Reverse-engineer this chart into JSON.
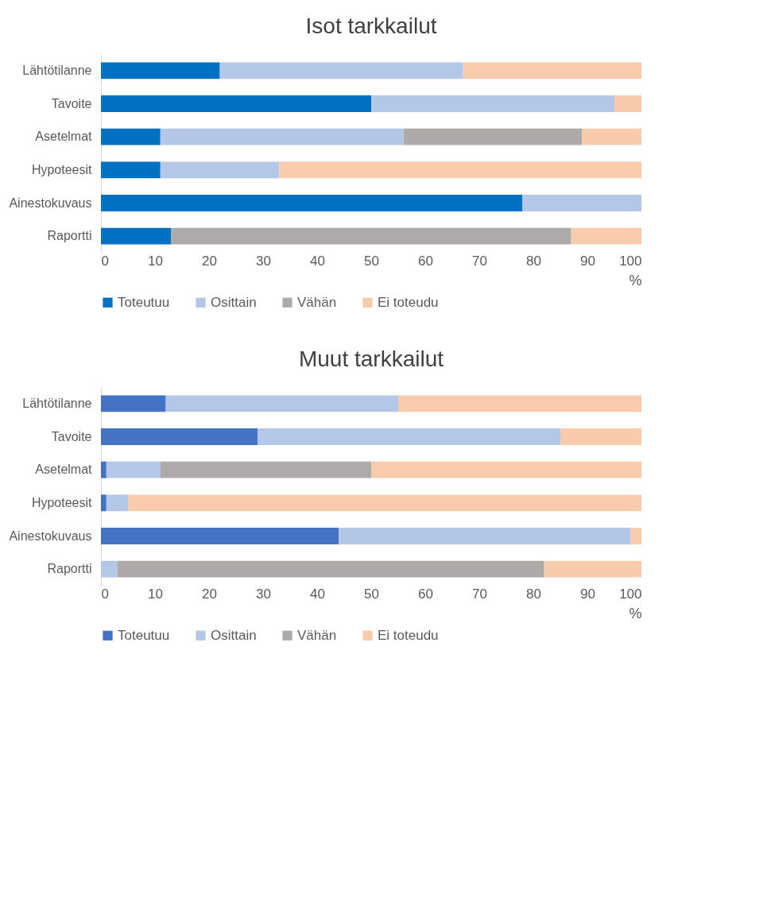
{
  "chart_data": [
    {
      "type": "bar",
      "title": "Isot tarkkailut",
      "orientation": "horizontal",
      "stacked": true,
      "xlabel": "%",
      "categories": [
        "Lähtötilanne",
        "Tavoite",
        "Asetelmat",
        "Hypoteesit",
        "Ainestokuvaus",
        "Raportti"
      ],
      "series": [
        {
          "name": "Toteutuu",
          "color": "#0070c0",
          "values": [
            22,
            50,
            11,
            11,
            78,
            13
          ]
        },
        {
          "name": "Osittain",
          "color": "#b4c7e7",
          "values": [
            45,
            45,
            45,
            22,
            22,
            0
          ]
        },
        {
          "name": "Vähän",
          "color": "#aeaaaa",
          "values": [
            0,
            0,
            33,
            0,
            0,
            74
          ]
        },
        {
          "name": "Ei toteudu",
          "color": "#f8cbad",
          "values": [
            33,
            5,
            11,
            67,
            0,
            13
          ]
        }
      ],
      "xlim": [
        0,
        100
      ],
      "xticks": [
        0,
        10,
        20,
        30,
        40,
        50,
        60,
        70,
        80,
        90,
        100
      ],
      "grid": false,
      "legend": "bottom"
    },
    {
      "type": "bar",
      "title": "Muut tarkkailut",
      "orientation": "horizontal",
      "stacked": true,
      "xlabel": "%",
      "categories": [
        "Lähtötilanne",
        "Tavoite",
        "Asetelmat",
        "Hypoteesit",
        "Ainestokuvaus",
        "Raportti"
      ],
      "series": [
        {
          "name": "Toteutuu",
          "color": "#4472c4",
          "values": [
            12,
            29,
            1,
            1,
            44,
            0
          ]
        },
        {
          "name": "Osittain",
          "color": "#b4c7e7",
          "values": [
            43,
            56,
            10,
            4,
            54,
            3
          ]
        },
        {
          "name": "Vähän",
          "color": "#aeaaaa",
          "values": [
            0,
            0,
            39,
            0,
            0,
            79
          ]
        },
        {
          "name": "Ei toteudu",
          "color": "#f8cbad",
          "values": [
            45,
            15,
            50,
            95,
            2,
            18
          ]
        }
      ],
      "xlim": [
        0,
        100
      ],
      "xticks": [
        0,
        10,
        20,
        30,
        40,
        50,
        60,
        70,
        80,
        90,
        100
      ],
      "grid": false,
      "legend": "bottom"
    }
  ]
}
